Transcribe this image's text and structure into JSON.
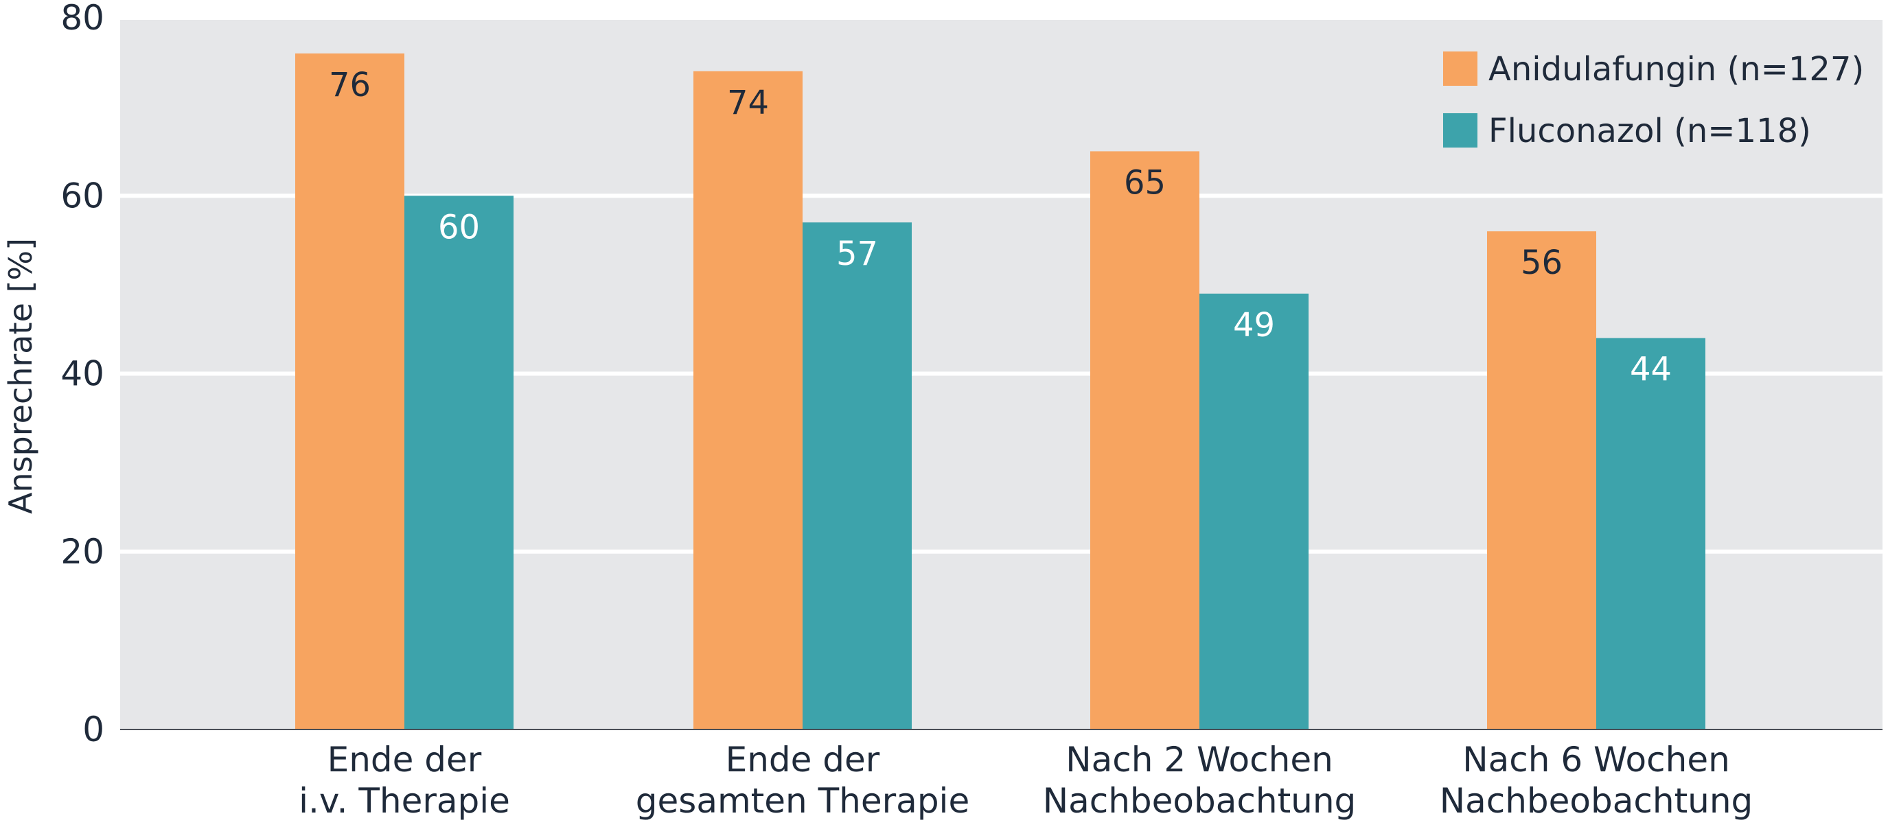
{
  "colors": {
    "background": "#e6e7e9",
    "grid": "#ffffff",
    "axis": "#4a4f57",
    "text": "#1f2a3a",
    "anidulafungin": "#f7a460",
    "fluconazol": "#3da3ab",
    "label_on_orange": "#1f2a3a",
    "label_on_teal": "#ffffff"
  },
  "chart_data": {
    "type": "bar",
    "title": "",
    "xlabel": "",
    "ylabel": "Ansprechrate [%]",
    "ylim": [
      0,
      80
    ],
    "yticks": [
      0,
      20,
      40,
      60,
      80
    ],
    "grid": true,
    "legend_position": "top-right",
    "categories": [
      [
        "Ende der",
        "i.v. Therapie"
      ],
      [
        "Ende der",
        "gesamten Therapie"
      ],
      [
        "Nach 2 Wochen",
        "Nachbeobachtung"
      ],
      [
        "Nach 6 Wochen",
        "Nachbeobachtung"
      ]
    ],
    "series": [
      {
        "name": "Anidulafungin (n=127)",
        "values": [
          76,
          74,
          65,
          56
        ]
      },
      {
        "name": "Fluconazol (n=118)",
        "values": [
          60,
          57,
          49,
          44
        ]
      }
    ]
  }
}
